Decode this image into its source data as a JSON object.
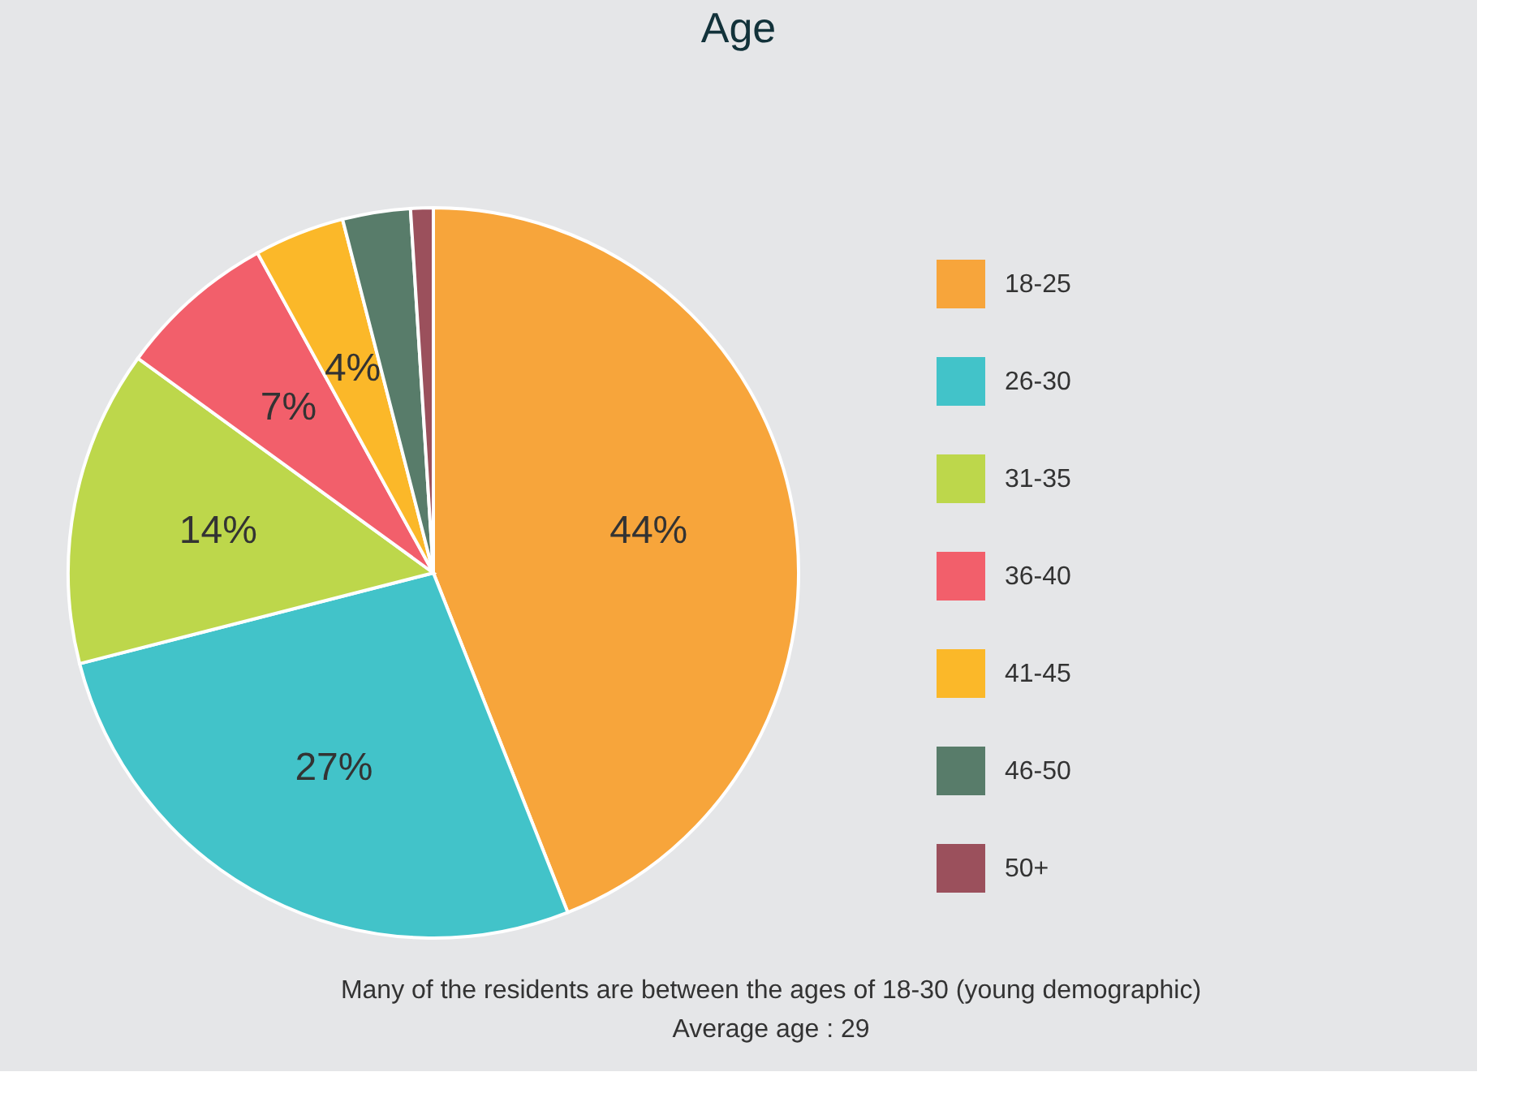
{
  "chart_data": {
    "type": "pie",
    "title": "Age",
    "categories": [
      "18-25",
      "26-30",
      "31-35",
      "36-40",
      "41-45",
      "46-50",
      "50+"
    ],
    "values": [
      44,
      27,
      14,
      7,
      4,
      3,
      1
    ],
    "colors": [
      "#f7a53b",
      "#42c3c9",
      "#bdd74b",
      "#f25f6b",
      "#fbb829",
      "#587c6a",
      "#9b505c"
    ],
    "value_labels": [
      "44%",
      "27%",
      "14%",
      "7%",
      "4%",
      null,
      null
    ],
    "legend": "right",
    "annotations": [
      "Many of the residents are between the ages of 18-30 (young demographic)",
      "Average age : 29"
    ]
  }
}
